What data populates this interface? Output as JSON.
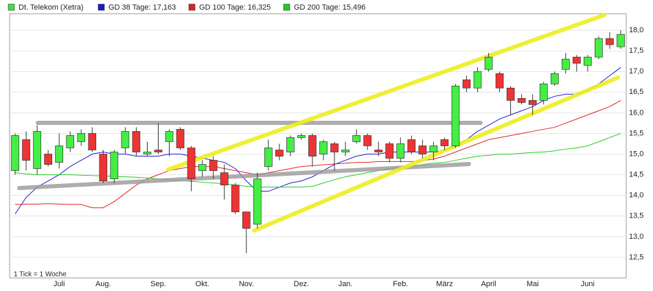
{
  "chart_data": {
    "type": "candlestick",
    "note": "1 Tick = 1 Woche",
    "categories": [
      null,
      null,
      null,
      null,
      "Juli",
      null,
      null,
      null,
      "Aug.",
      null,
      null,
      null,
      null,
      "Sep.",
      null,
      null,
      null,
      "Okt.",
      null,
      null,
      null,
      "Nov.",
      null,
      null,
      null,
      null,
      "Dez.",
      null,
      null,
      null,
      "Jan.",
      null,
      null,
      null,
      null,
      "Feb.",
      null,
      null,
      null,
      "März",
      null,
      null,
      null,
      "April",
      null,
      null,
      null,
      "Mai",
      null,
      null,
      null,
      null,
      "Juni",
      null,
      null,
      null
    ],
    "ylim": [
      12.0,
      18.4
    ],
    "yticks": [
      {
        "value": 12.5,
        "label": "12,5"
      },
      {
        "value": 13,
        "label": "13,0"
      },
      {
        "value": 13.5,
        "label": "13,5"
      },
      {
        "value": 14,
        "label": "14,0"
      },
      {
        "value": 14.5,
        "label": "14,5"
      },
      {
        "value": 15,
        "label": "15,0"
      },
      {
        "value": 15.5,
        "label": "15,5"
      },
      {
        "value": 16,
        "label": "16,0"
      },
      {
        "value": 16.5,
        "label": "16,5"
      },
      {
        "value": 17,
        "label": "17,0"
      },
      {
        "value": 17.5,
        "label": "17,5"
      },
      {
        "value": 18,
        "label": "18,0"
      }
    ],
    "grid": true,
    "series": [
      {
        "name": "Dt. Telekom (Xetra)",
        "color": "#44dd44",
        "up_color": "#44ee44",
        "down_color": "#ee3333",
        "open": [
          14.6,
          15.35,
          14.65,
          15.0,
          14.8,
          15.15,
          15.3,
          15.5,
          15.0,
          14.4,
          15.15,
          15.55,
          15.0,
          15.1,
          15.3,
          15.6,
          15.15,
          14.6,
          14.85,
          14.55,
          14.25,
          13.6,
          13.3,
          14.7,
          15.1,
          15.05,
          15.4,
          15.45,
          15.0,
          15.25,
          15.05,
          15.3,
          15.45,
          15.1,
          15.25,
          14.9,
          15.35,
          15.2,
          15.05,
          15.35,
          15.2,
          16.8,
          16.6,
          17.05,
          16.95,
          16.6,
          16.35,
          16.3,
          16.3,
          16.7,
          17.05,
          17.35,
          17.15,
          17.35,
          17.8,
          17.6
        ],
        "high": [
          15.5,
          15.55,
          15.7,
          15.1,
          15.5,
          15.55,
          15.6,
          15.65,
          15.1,
          15.1,
          15.65,
          15.65,
          15.3,
          15.75,
          15.6,
          15.65,
          15.2,
          14.85,
          14.95,
          14.75,
          14.3,
          13.6,
          14.55,
          15.35,
          15.25,
          15.45,
          15.5,
          15.5,
          15.35,
          15.3,
          15.3,
          15.6,
          15.5,
          15.3,
          15.3,
          15.4,
          15.45,
          15.35,
          15.3,
          15.4,
          16.7,
          16.9,
          17.1,
          17.45,
          17.0,
          16.65,
          16.45,
          16.45,
          16.75,
          17.0,
          17.45,
          17.4,
          17.4,
          17.85,
          17.95,
          18.0
        ],
        "low": [
          14.5,
          14.6,
          14.5,
          14.7,
          14.65,
          15.05,
          15.2,
          15.05,
          14.3,
          14.3,
          15.0,
          14.95,
          14.95,
          15.0,
          14.95,
          15.1,
          14.1,
          14.45,
          14.4,
          13.9,
          13.55,
          12.6,
          13.2,
          14.6,
          14.85,
          14.95,
          15.35,
          14.7,
          14.85,
          14.6,
          14.95,
          15.25,
          15.1,
          14.95,
          14.8,
          14.8,
          15.0,
          14.9,
          14.85,
          15.1,
          15.15,
          16.5,
          16.5,
          17.0,
          16.5,
          15.95,
          16.2,
          15.95,
          16.2,
          16.65,
          16.95,
          17.0,
          17.0,
          17.3,
          17.55,
          17.55
        ],
        "close": [
          15.45,
          14.85,
          15.55,
          14.75,
          15.2,
          15.45,
          15.5,
          15.1,
          14.35,
          15.05,
          15.55,
          15.05,
          15.05,
          15.05,
          15.55,
          15.15,
          14.4,
          14.75,
          14.6,
          14.25,
          13.6,
          13.2,
          14.4,
          15.15,
          14.95,
          15.4,
          15.45,
          14.95,
          15.3,
          15.05,
          15.1,
          15.45,
          15.2,
          15.05,
          14.9,
          15.25,
          15.05,
          15.0,
          15.2,
          15.2,
          16.65,
          16.6,
          17.0,
          17.35,
          16.6,
          16.3,
          16.25,
          16.2,
          16.7,
          16.95,
          17.3,
          17.2,
          17.35,
          17.8,
          17.65,
          17.9
        ]
      },
      {
        "name": "GD 38 Tage: 17,163",
        "color": "#1a1acc",
        "values": [
          13.55,
          13.95,
          14.2,
          14.35,
          14.5,
          14.7,
          14.85,
          15.0,
          15.05,
          15.0,
          15.0,
          14.95,
          14.95,
          14.95,
          15.0,
          15.0,
          14.95,
          14.9,
          14.85,
          14.8,
          14.65,
          14.35,
          14.1,
          14.1,
          14.2,
          14.3,
          14.35,
          14.45,
          14.6,
          14.75,
          14.85,
          14.95,
          15.0,
          15.0,
          15.05,
          15.05,
          15.05,
          15.05,
          15.05,
          15.1,
          15.2,
          15.35,
          15.55,
          15.7,
          15.85,
          15.95,
          16.05,
          16.15,
          16.3,
          16.4,
          16.45,
          16.45,
          16.55,
          16.7,
          16.9,
          17.1
        ]
      },
      {
        "name": "GD 100 Tage: 16,325",
        "color": "#dd2222",
        "values": [
          13.78,
          13.79,
          13.79,
          13.8,
          13.79,
          13.78,
          13.78,
          13.7,
          13.7,
          13.85,
          14.05,
          14.25,
          14.4,
          14.5,
          14.6,
          14.65,
          14.7,
          14.7,
          14.7,
          14.65,
          14.6,
          14.55,
          14.5,
          14.55,
          14.6,
          14.65,
          14.7,
          14.72,
          14.74,
          14.76,
          14.78,
          14.8,
          14.8,
          14.82,
          14.82,
          14.82,
          14.82,
          14.84,
          14.88,
          14.95,
          15.05,
          15.15,
          15.25,
          15.35,
          15.4,
          15.45,
          15.5,
          15.55,
          15.6,
          15.65,
          15.75,
          15.85,
          15.95,
          16.05,
          16.15,
          16.3
        ]
      },
      {
        "name": "GD 200 Tage: 15,496",
        "color": "#22cc22",
        "values": [
          14.55,
          14.52,
          14.5,
          14.5,
          14.5,
          14.5,
          14.49,
          14.48,
          14.47,
          14.46,
          14.45,
          14.44,
          14.42,
          14.4,
          14.38,
          14.36,
          14.34,
          14.32,
          14.3,
          14.28,
          14.25,
          14.22,
          14.2,
          14.2,
          14.2,
          14.2,
          14.2,
          14.22,
          14.3,
          14.38,
          14.45,
          14.5,
          14.55,
          14.6,
          14.65,
          14.68,
          14.7,
          14.75,
          14.78,
          14.8,
          14.85,
          14.9,
          14.95,
          14.97,
          15.0,
          15.0,
          15.02,
          15.04,
          15.05,
          15.08,
          15.12,
          15.15,
          15.2,
          15.3,
          15.4,
          15.5
        ]
      }
    ]
  }
}
